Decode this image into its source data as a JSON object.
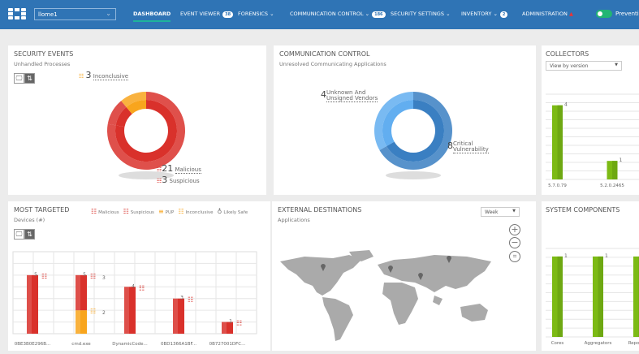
{
  "nav": {
    "site": "llome1",
    "items": [
      {
        "label": "DASHBOARD",
        "active": true
      },
      {
        "label": "EVENT VIEWER",
        "badge": "38"
      },
      {
        "label": "FORENSICS",
        "chevron": true
      },
      {
        "label": "COMMUNICATION CONTROL",
        "chevron": true,
        "badge": "186"
      },
      {
        "label": "SECURITY SETTINGS",
        "chevron": true
      },
      {
        "label": "INVENTORY",
        "chevron": true,
        "badge": "2"
      },
      {
        "label": "ADMINISTRATION",
        "icon": "warning-icon"
      }
    ],
    "mode_label": "Prevention",
    "mode_on": true
  },
  "colors": {
    "nav": "#2f74b5",
    "malicious": "#d9312b",
    "inconclusive": "#f8a51d",
    "critical": "#3a7fc2",
    "unknown": "#62aef0",
    "green": "#7cba14"
  },
  "security_events": {
    "title": "SECURITY EVENTS",
    "subtitle": "Unhandled Processes",
    "slices": [
      {
        "label": "Inconclusive",
        "value": 3,
        "color": "#f8a51d"
      },
      {
        "label": "Malicious",
        "value": 21,
        "color": "#d9312b"
      },
      {
        "label": "Suspicious",
        "value": 3,
        "color": "#d9312b"
      }
    ]
  },
  "communication_control": {
    "title": "COMMUNICATION CONTROL",
    "subtitle": "Unresolved Communicating Applications",
    "slices": [
      {
        "label_line1": "Critical",
        "label_line2": "Vulnerability",
        "value": 8,
        "color": "#3a7fc2"
      },
      {
        "label_line1": "Unknown And",
        "label_line2": "Unsigned Vendors",
        "value": 4,
        "color": "#62aef0"
      }
    ]
  },
  "collectors": {
    "title": "COLLECTORS",
    "dropdown": "View by version",
    "categories": [
      "5.7.0.79",
      "5.2.0.2465"
    ],
    "values": [
      4,
      1
    ],
    "ymax": 4.6
  },
  "most_targeted": {
    "title": "MOST TARGETED",
    "subtitle": "Devices (#)",
    "legend": [
      "Malicious",
      "Suspicious",
      "PUP",
      "Inconclusive",
      "Likely Safe"
    ],
    "ymax": 7,
    "categories": [
      "0BE3B0E296B...",
      "cmd.exe",
      "DynamicCode...",
      "0BD1366A1BF...",
      "0B727001DFC..."
    ],
    "series": [
      {
        "name": "Malicious",
        "values": [
          5,
          3,
          0,
          3,
          1
        ]
      },
      {
        "name": "Suspicious",
        "values": [
          0,
          0,
          4,
          0,
          0
        ]
      },
      {
        "name": "Inconclusive",
        "values": [
          0,
          2,
          0,
          0,
          0
        ]
      }
    ],
    "totals": [
      5,
      5,
      4,
      3,
      1
    ]
  },
  "external_destinations": {
    "title": "EXTERNAL DESTINATIONS",
    "subtitle": "Applications",
    "dropdown": "Week"
  },
  "system_components": {
    "title": "SYSTEM COMPONENTS",
    "categories": [
      "Cores",
      "Aggregators",
      "Reposit..."
    ],
    "values": [
      1,
      1,
      1
    ],
    "ymax": 1.1
  }
}
